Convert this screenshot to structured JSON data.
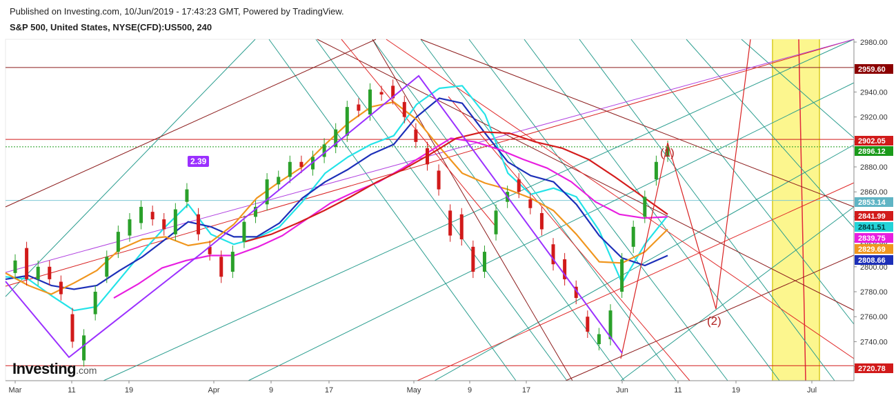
{
  "header": {
    "published": "Published on Investing.com, 10/Jun/2019 - 17:43:23 GMT, Powered by TradingView.",
    "symbol": "S&P 500, United States, NYSE(CFD):US500, 240"
  },
  "logo": {
    "name": "Investing",
    "domain": ".com"
  },
  "badge": "2.39",
  "wave_labels": {
    "one": "(1)",
    "two": "(2)"
  },
  "colors": {
    "up_candle": "#2aa02a",
    "down_candle": "#d11a1a",
    "ema_cyan": "#23e3e8",
    "ema_blue": "#1c2fb8",
    "ema_orange": "#f0961e",
    "ema_magenta": "#e81ee0",
    "ema_red": "#d41c1c",
    "highlight_zone": "#fbf57a"
  },
  "chart_data": {
    "type": "line",
    "title": "S&P 500, United States, NYSE(CFD):US500, 240",
    "ylim": [
      2708,
      2984
    ],
    "y_ticks": [
      "2980.00",
      "2960.00",
      "2940.00",
      "2920.00",
      "2900.00",
      "2880.00",
      "2860.00",
      "2840.00",
      "2820.00",
      "2800.00",
      "2780.00",
      "2760.00",
      "2740.00",
      "2720.00"
    ],
    "x_ticks": [
      "Mar",
      "11",
      "19",
      "Apr",
      "9",
      "17",
      "May",
      "9",
      "17",
      "Jun",
      "11",
      "19",
      "Jul"
    ],
    "price_labels": [
      {
        "value": "2959.60",
        "color": "#8b0000"
      },
      {
        "value": "2902.05",
        "color": "#d11a1a"
      },
      {
        "value": "2896.12",
        "color": "#1a9a1a"
      },
      {
        "value": "2853.14",
        "color": "#5fb4c4"
      },
      {
        "value": "2841.99",
        "color": "#d11a1a"
      },
      {
        "value": "2841.51",
        "color": "#23d3d8"
      },
      {
        "value": "2839.75",
        "color": "#e81ee0"
      },
      {
        "value": "2829.69",
        "color": "#f0961e"
      },
      {
        "value": "2808.66",
        "color": "#1c2fb8"
      },
      {
        "value": "2720.78",
        "color": "#d11a1a"
      }
    ],
    "horizontal_lines": [
      {
        "value": 2959.6,
        "color": "#8b1a1a"
      },
      {
        "value": 2902.05,
        "color": "#d11a1a"
      },
      {
        "value": 2896.12,
        "color": "#1a9a1a",
        "dash": true
      },
      {
        "value": 2853.14,
        "color": "#7ec8d4"
      },
      {
        "value": 2720.78,
        "color": "#d11a1a"
      }
    ],
    "series": [
      {
        "name": "EMA fast (cyan)",
        "values": [
          2792,
          2790,
          2777,
          2765,
          2768,
          2790,
          2812,
          2832,
          2850,
          2826,
          2818,
          2823,
          2832,
          2852,
          2875,
          2888,
          2898,
          2905,
          2930,
          2943,
          2945,
          2922,
          2875,
          2858,
          2863,
          2856,
          2829,
          2787,
          2818,
          2841
        ]
      },
      {
        "name": "EMA blue",
        "values": [
          2790,
          2793,
          2785,
          2782,
          2785,
          2797,
          2808,
          2822,
          2836,
          2832,
          2824,
          2824,
          2835,
          2855,
          2868,
          2878,
          2890,
          2898,
          2920,
          2935,
          2931,
          2907,
          2884,
          2873,
          2868,
          2850,
          2825,
          2807,
          2801,
          2809
        ]
      },
      {
        "name": "EMA orange",
        "values": [
          2795,
          2785,
          2778,
          2787,
          2797,
          2814,
          2822,
          2824,
          2817,
          2820,
          2834,
          2855,
          2868,
          2880,
          2898,
          2915,
          2928,
          2932,
          2918,
          2896,
          2875,
          2867,
          2862,
          2855,
          2845,
          2826,
          2804,
          2803,
          2812,
          2830
        ]
      },
      {
        "name": "EMA magenta",
        "values": [
          2775,
          2786,
          2799,
          2805,
          2809,
          2809,
          2816,
          2825,
          2838,
          2851,
          2860,
          2868,
          2879,
          2891,
          2903,
          2900,
          2894,
          2886,
          2879,
          2868,
          2852,
          2842,
          2839,
          2840
        ]
      },
      {
        "name": "EMA red",
        "values": [
          2820,
          2826,
          2835,
          2845,
          2856,
          2868,
          2878,
          2890,
          2903,
          2908,
          2907,
          2900,
          2895,
          2886,
          2872,
          2857,
          2842
        ]
      }
    ],
    "candles": [
      [
        2795,
        2805
      ],
      [
        2815,
        2790
      ],
      [
        2790,
        2800
      ],
      [
        2800,
        2790
      ],
      [
        2788,
        2778
      ],
      [
        2762,
        2740
      ],
      [
        2725,
        2745
      ],
      [
        2762,
        2780
      ],
      [
        2792,
        2808
      ],
      [
        2812,
        2828
      ],
      [
        2825,
        2838
      ],
      [
        2835,
        2848
      ],
      [
        2844,
        2838
      ],
      [
        2838,
        2830
      ],
      [
        2826,
        2846
      ],
      [
        2852,
        2862
      ],
      [
        2842,
        2826
      ],
      [
        2816,
        2810
      ],
      [
        2808,
        2792
      ],
      [
        2796,
        2812
      ],
      [
        2820,
        2836
      ],
      [
        2840,
        2848
      ],
      [
        2850,
        2870
      ],
      [
        2866,
        2872
      ],
      [
        2872,
        2884
      ],
      [
        2884,
        2880
      ],
      [
        2878,
        2888
      ],
      [
        2888,
        2898
      ],
      [
        2896,
        2910
      ],
      [
        2905,
        2928
      ],
      [
        2930,
        2925
      ],
      [
        2922,
        2942
      ],
      [
        2940,
        2938
      ],
      [
        2945,
        2935
      ],
      [
        2932,
        2920
      ],
      [
        2910,
        2900
      ],
      [
        2895,
        2882
      ],
      [
        2877,
        2862
      ],
      [
        2845,
        2825
      ],
      [
        2842,
        2822
      ],
      [
        2816,
        2796
      ],
      [
        2796,
        2812
      ],
      [
        2826,
        2845
      ],
      [
        2852,
        2860
      ],
      [
        2870,
        2860
      ],
      [
        2854,
        2847
      ],
      [
        2843,
        2830
      ],
      [
        2818,
        2802
      ],
      [
        2806,
        2790
      ],
      [
        2784,
        2775
      ],
      [
        2760,
        2748
      ],
      [
        2738,
        2746
      ],
      [
        2742,
        2765
      ],
      [
        2780,
        2806
      ],
      [
        2816,
        2832
      ],
      [
        2840,
        2856
      ],
      [
        2870,
        2884
      ],
      [
        2889,
        2896
      ]
    ]
  }
}
